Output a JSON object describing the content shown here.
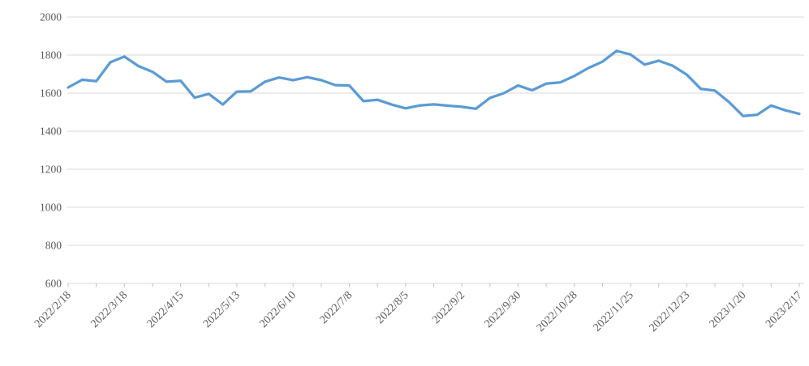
{
  "chart_data": {
    "type": "line",
    "title": "",
    "xlabel": "",
    "ylabel": "",
    "legend": "none",
    "grid": "horizontal",
    "ylim": [
      600,
      2000
    ],
    "y_ticks": [
      600,
      800,
      1000,
      1200,
      1400,
      1600,
      1800,
      2000
    ],
    "x_label_every_n_points": 4,
    "x_minor_tick_every_n_points": 2,
    "x": [
      "2022/2/18",
      "2022/2/25",
      "2022/3/4",
      "2022/3/11",
      "2022/3/18",
      "2022/3/25",
      "2022/4/1",
      "2022/4/8",
      "2022/4/15",
      "2022/4/22",
      "2022/4/29",
      "2022/5/6",
      "2022/5/13",
      "2022/5/20",
      "2022/5/27",
      "2022/6/3",
      "2022/6/10",
      "2022/6/17",
      "2022/6/24",
      "2022/7/1",
      "2022/7/8",
      "2022/7/15",
      "2022/7/22",
      "2022/7/29",
      "2022/8/5",
      "2022/8/12",
      "2022/8/19",
      "2022/8/26",
      "2022/9/2",
      "2022/9/9",
      "2022/9/16",
      "2022/9/23",
      "2022/9/30",
      "2022/10/7",
      "2022/10/14",
      "2022/10/21",
      "2022/10/28",
      "2022/11/4",
      "2022/11/11",
      "2022/11/18",
      "2022/11/25",
      "2022/12/2",
      "2022/12/9",
      "2022/12/16",
      "2022/12/23",
      "2022/12/30",
      "2023/1/6",
      "2023/1/13",
      "2023/1/20",
      "2023/1/27",
      "2023/2/3",
      "2023/2/10",
      "2023/2/17"
    ],
    "x_tick_labels": [
      "2022/2/18",
      "2022/3/18",
      "2022/4/15",
      "2022/5/13",
      "2022/6/10",
      "2022/7/8",
      "2022/8/5",
      "2022/9/2",
      "2022/9/30",
      "2022/10/28",
      "2022/11/25",
      "2022/12/23",
      "2023/1/20",
      "2023/2/17"
    ],
    "series": [
      {
        "name": "",
        "values": [
          1630,
          1670,
          1663,
          1762,
          1792,
          1742,
          1712,
          1660,
          1665,
          1576,
          1596,
          1540,
          1608,
          1610,
          1660,
          1682,
          1668,
          1684,
          1668,
          1642,
          1640,
          1558,
          1565,
          1540,
          1520,
          1535,
          1541,
          1534,
          1528,
          1518,
          1575,
          1600,
          1640,
          1615,
          1650,
          1656,
          1690,
          1732,
          1765,
          1822,
          1803,
          1750,
          1770,
          1744,
          1697,
          1622,
          1613,
          1553,
          1480,
          1486,
          1535,
          1510,
          1491
        ]
      }
    ],
    "colors": {
      "line": "#5B9BD5",
      "gridline": "#D9D9D9",
      "axis_line": "#D9D9D9",
      "tick": "#BFBFBF",
      "label_text": "#595959",
      "background": "#FFFFFF"
    }
  }
}
